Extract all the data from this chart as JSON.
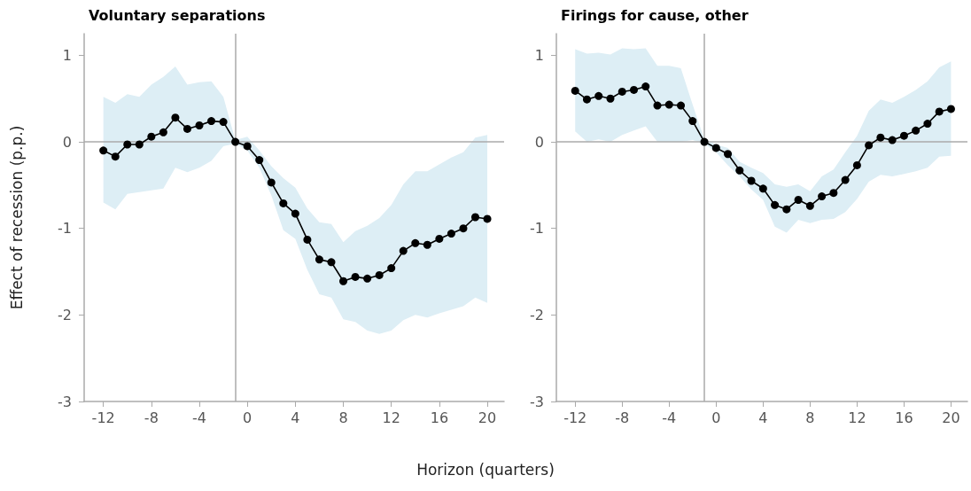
{
  "chart_data": [
    {
      "type": "line",
      "title": "Voluntary separations",
      "xlabel": "Horizon (quarters)",
      "ylabel": "Effect of recession (p.p.)",
      "x": [
        -12,
        -11,
        -10,
        -9,
        -8,
        -7,
        -6,
        -5,
        -4,
        -3,
        -2,
        -1,
        0,
        1,
        2,
        3,
        4,
        5,
        6,
        7,
        8,
        9,
        10,
        11,
        12,
        13,
        14,
        15,
        16,
        17,
        18,
        19,
        20
      ],
      "series": [
        {
          "color": "#000000",
          "values": [
            -0.1,
            -0.17,
            -0.03,
            -0.03,
            0.06,
            0.11,
            0.28,
            0.15,
            0.19,
            0.24,
            0.23,
            0,
            -0.05,
            -0.21,
            -0.47,
            -0.71,
            -0.83,
            -1.13,
            -1.36,
            -1.39,
            -1.61,
            -1.56,
            -1.58,
            -1.54,
            -1.46,
            -1.26,
            -1.17,
            -1.19,
            -1.12,
            -1.06,
            -1.0,
            -0.87,
            -0.89
          ],
          "upper": [
            0.52,
            0.45,
            0.55,
            0.52,
            0.66,
            0.75,
            0.87,
            0.66,
            0.69,
            0.7,
            0.52,
            0.02,
            0.06,
            -0.1,
            -0.28,
            -0.42,
            -0.53,
            -0.77,
            -0.93,
            -0.95,
            -1.16,
            -1.03,
            -0.97,
            -0.88,
            -0.73,
            -0.49,
            -0.34,
            -0.34,
            -0.26,
            -0.18,
            -0.12,
            0.05,
            0.08
          ],
          "lower": [
            -0.7,
            -0.78,
            -0.6,
            -0.58,
            -0.56,
            -0.54,
            -0.3,
            -0.35,
            -0.3,
            -0.22,
            -0.05,
            -0.02,
            -0.1,
            -0.3,
            -0.62,
            -1.02,
            -1.12,
            -1.48,
            -1.76,
            -1.8,
            -2.05,
            -2.08,
            -2.18,
            -2.22,
            -2.18,
            -2.06,
            -2.0,
            -2.03,
            -1.98,
            -1.94,
            -1.9,
            -1.8,
            -1.86
          ]
        }
      ],
      "xlim": [
        -13.6,
        21.4
      ],
      "xticks": [
        -12,
        -8,
        -4,
        0,
        4,
        8,
        12,
        16,
        20
      ],
      "ylim": [
        -3,
        1.25
      ],
      "yticks": [
        -3,
        -2,
        -1,
        0,
        1
      ],
      "ref_lines": [
        {
          "axis": "x",
          "value": -1,
          "color": "#aaaaaa"
        },
        {
          "axis": "y",
          "value": 0,
          "color": "#aaaaaa"
        }
      ],
      "grid": false,
      "marker": "circle",
      "line_style": "solid"
    },
    {
      "type": "line",
      "title": "Firings for cause, other",
      "x": [
        -12,
        -11,
        -10,
        -9,
        -8,
        -7,
        -6,
        -5,
        -4,
        -3,
        -2,
        -1,
        0,
        1,
        2,
        3,
        4,
        5,
        6,
        7,
        8,
        9,
        10,
        11,
        12,
        13,
        14,
        15,
        16,
        17,
        18,
        19,
        20
      ],
      "series": [
        {
          "color": "#000000",
          "values": [
            0.59,
            0.49,
            0.53,
            0.5,
            0.58,
            0.6,
            0.64,
            0.42,
            0.43,
            0.42,
            0.24,
            0,
            -0.07,
            -0.14,
            -0.33,
            -0.45,
            -0.54,
            -0.73,
            -0.78,
            -0.67,
            -0.74,
            -0.63,
            -0.59,
            -0.44,
            -0.27,
            -0.04,
            0.05,
            0.02,
            0.07,
            0.13,
            0.21,
            0.35,
            0.38
          ],
          "upper": [
            1.07,
            1.02,
            1.03,
            1.01,
            1.08,
            1.07,
            1.08,
            0.88,
            0.88,
            0.85,
            0.43,
            0.03,
            -0.03,
            -0.07,
            -0.23,
            -0.3,
            -0.36,
            -0.49,
            -0.52,
            -0.49,
            -0.57,
            -0.4,
            -0.32,
            -0.12,
            0.07,
            0.36,
            0.49,
            0.45,
            0.52,
            0.6,
            0.7,
            0.86,
            0.93
          ],
          "lower": [
            0.12,
            0.0,
            0.03,
            0.0,
            0.08,
            0.13,
            0.18,
            0.0,
            0.0,
            0.0,
            0.02,
            -0.02,
            -0.12,
            -0.27,
            -0.4,
            -0.55,
            -0.67,
            -0.98,
            -1.05,
            -0.9,
            -0.94,
            -0.9,
            -0.89,
            -0.81,
            -0.66,
            -0.46,
            -0.38,
            -0.4,
            -0.37,
            -0.34,
            -0.3,
            -0.17,
            -0.16
          ]
        }
      ],
      "xlim": [
        -13.6,
        21.4
      ],
      "xticks": [
        -12,
        -8,
        -4,
        0,
        4,
        8,
        12,
        16,
        20
      ],
      "ylim": [
        -3,
        1.25
      ],
      "yticks": [
        -3,
        -2,
        -1,
        0,
        1
      ],
      "ref_lines": [
        {
          "axis": "x",
          "value": -1,
          "color": "#aaaaaa"
        },
        {
          "axis": "y",
          "value": 0,
          "color": "#aaaaaa"
        }
      ],
      "grid": false,
      "marker": "circle",
      "line_style": "solid"
    }
  ]
}
